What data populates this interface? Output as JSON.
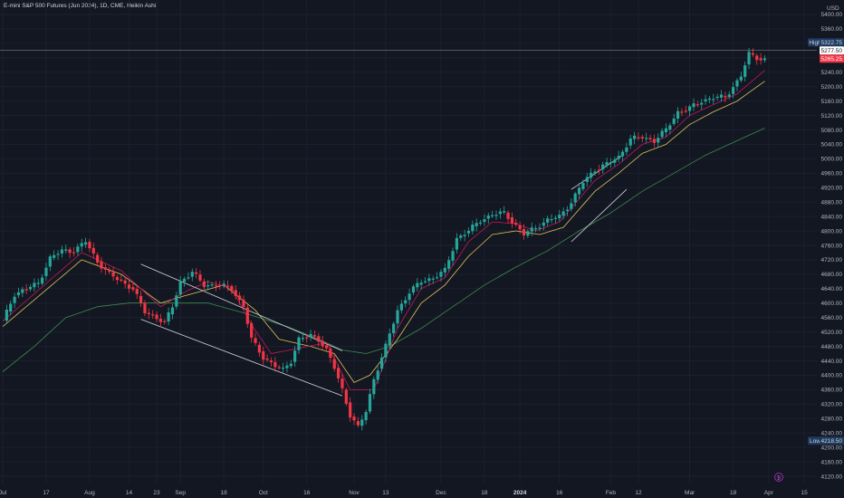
{
  "header": {
    "title": "E-mini S&P 500 Futures (Jun 2024), 1D, CME, Heikin Ashi",
    "currency": "USD"
  },
  "colors": {
    "up": "#26a69a",
    "down": "#f23645",
    "grid": "#1c2030",
    "ema_fast": "#c2185b",
    "ema_mid": "#e0c35a",
    "ema_slow": "#3b8a4f",
    "trendline": "#d1d4dc",
    "accent": "#2962ff"
  },
  "chart_data": {
    "type": "candlestick",
    "style": "heikin-ashi",
    "ylim": [
      4100,
      5440
    ],
    "y_ticks": [
      5400,
      5360,
      5320,
      5280,
      5240,
      5200,
      5160,
      5120,
      5080,
      5040,
      5000,
      4960,
      4920,
      4880,
      4840,
      4800,
      4760,
      4720,
      4680,
      4640,
      4600,
      4560,
      4520,
      4480,
      4440,
      4400,
      4360,
      4320,
      4280,
      4240,
      4200,
      4160,
      4120
    ],
    "y_tick_labels": [
      "5400.00",
      "5360.00",
      "5320.00",
      "5280.00",
      "5240.00",
      "5200.00",
      "5160.00",
      "5120.00",
      "5080.00",
      "5040.00",
      "5000.00",
      "4960.00",
      "4920.00",
      "4880.00",
      "4840.00",
      "4800.00",
      "4760.00",
      "4720.00",
      "4680.00",
      "4640.00",
      "4600.00",
      "4560.00",
      "4520.00",
      "4480.00",
      "4440.00",
      "4400.00",
      "4360.00",
      "4320.00",
      "4280.00",
      "4240.00",
      "4200.00",
      "4160.00",
      "4120.00"
    ],
    "x_labels": [
      {
        "text": "Jul",
        "index": 0,
        "bold": false
      },
      {
        "text": "17",
        "index": 11,
        "bold": false
      },
      {
        "text": "Aug",
        "index": 22,
        "bold": false
      },
      {
        "text": "14",
        "index": 32,
        "bold": false
      },
      {
        "text": "23",
        "index": 39,
        "bold": false
      },
      {
        "text": "Sep",
        "index": 45,
        "bold": false
      },
      {
        "text": "18",
        "index": 56,
        "bold": false
      },
      {
        "text": "Oct",
        "index": 66,
        "bold": false
      },
      {
        "text": "16",
        "index": 77,
        "bold": false
      },
      {
        "text": "Nov",
        "index": 89,
        "bold": false
      },
      {
        "text": "13",
        "index": 97,
        "bold": false
      },
      {
        "text": "Dec",
        "index": 111,
        "bold": false
      },
      {
        "text": "18",
        "index": 122,
        "bold": false
      },
      {
        "text": "2024",
        "index": 131,
        "bold": true
      },
      {
        "text": "16",
        "index": 141,
        "bold": false
      },
      {
        "text": "Feb",
        "index": 154,
        "bold": false
      },
      {
        "text": "12",
        "index": 161,
        "bold": false
      },
      {
        "text": "Mar",
        "index": 174,
        "bold": false
      },
      {
        "text": "18",
        "index": 185,
        "bold": false
      },
      {
        "text": "Apr",
        "index": 194,
        "bold": false
      },
      {
        "text": "15",
        "index": 203,
        "bold": false
      }
    ],
    "price_levels": {
      "high": {
        "label": "High",
        "value": 5322.75,
        "text": "5322.75"
      },
      "low": {
        "label": "Low",
        "value": 4218.5,
        "text": "4218.50"
      },
      "last": {
        "value": 5277.5,
        "text": "5277.50"
      },
      "prev": {
        "value": 5265.25,
        "text": "5265.25"
      }
    },
    "anchors": [
      [
        0,
        4550
      ],
      [
        3,
        4625
      ],
      [
        6,
        4640
      ],
      [
        9,
        4655
      ],
      [
        12,
        4725
      ],
      [
        15,
        4745
      ],
      [
        18,
        4745
      ],
      [
        21,
        4770
      ],
      [
        24,
        4715
      ],
      [
        27,
        4680
      ],
      [
        30,
        4660
      ],
      [
        33,
        4640
      ],
      [
        36,
        4575
      ],
      [
        39,
        4560
      ],
      [
        41,
        4545
      ],
      [
        43,
        4590
      ],
      [
        45,
        4660
      ],
      [
        48,
        4685
      ],
      [
        51,
        4650
      ],
      [
        55,
        4650
      ],
      [
        58,
        4640
      ],
      [
        61,
        4590
      ],
      [
        63,
        4500
      ],
      [
        66,
        4450
      ],
      [
        69,
        4425
      ],
      [
        71,
        4415
      ],
      [
        73,
        4440
      ],
      [
        75,
        4500
      ],
      [
        78,
        4510
      ],
      [
        80,
        4500
      ],
      [
        82,
        4470
      ],
      [
        84,
        4420
      ],
      [
        86,
        4360
      ],
      [
        88,
        4290
      ],
      [
        90,
        4255
      ],
      [
        92,
        4300
      ],
      [
        94,
        4390
      ],
      [
        97,
        4480
      ],
      [
        100,
        4580
      ],
      [
        103,
        4630
      ],
      [
        106,
        4660
      ],
      [
        109,
        4670
      ],
      [
        112,
        4690
      ],
      [
        115,
        4780
      ],
      [
        118,
        4800
      ],
      [
        121,
        4830
      ],
      [
        124,
        4845
      ],
      [
        127,
        4850
      ],
      [
        130,
        4815
      ],
      [
        132,
        4790
      ],
      [
        135,
        4810
      ],
      [
        138,
        4830
      ],
      [
        141,
        4840
      ],
      [
        144,
        4880
      ],
      [
        147,
        4935
      ],
      [
        150,
        4970
      ],
      [
        153,
        4985
      ],
      [
        156,
        5005
      ],
      [
        159,
        5055
      ],
      [
        162,
        5060
      ],
      [
        165,
        5050
      ],
      [
        168,
        5080
      ],
      [
        171,
        5130
      ],
      [
        174,
        5140
      ],
      [
        177,
        5160
      ],
      [
        180,
        5170
      ],
      [
        183,
        5170
      ],
      [
        185,
        5200
      ],
      [
        187,
        5230
      ],
      [
        189,
        5290
      ],
      [
        191,
        5280
      ],
      [
        193,
        5275
      ]
    ],
    "ema_fast": [
      [
        0,
        4550
      ],
      [
        20,
        4740
      ],
      [
        30,
        4690
      ],
      [
        40,
        4590
      ],
      [
        46,
        4630
      ],
      [
        52,
        4660
      ],
      [
        58,
        4640
      ],
      [
        63,
        4540
      ],
      [
        68,
        4460
      ],
      [
        75,
        4475
      ],
      [
        82,
        4490
      ],
      [
        88,
        4360
      ],
      [
        94,
        4360
      ],
      [
        100,
        4530
      ],
      [
        106,
        4640
      ],
      [
        112,
        4670
      ],
      [
        118,
        4770
      ],
      [
        124,
        4825
      ],
      [
        130,
        4820
      ],
      [
        135,
        4800
      ],
      [
        141,
        4825
      ],
      [
        150,
        4940
      ],
      [
        156,
        4985
      ],
      [
        162,
        5040
      ],
      [
        168,
        5060
      ],
      [
        174,
        5120
      ],
      [
        180,
        5150
      ],
      [
        186,
        5180
      ],
      [
        193,
        5245
      ]
    ],
    "ema_mid": [
      [
        0,
        4535
      ],
      [
        20,
        4720
      ],
      [
        30,
        4680
      ],
      [
        40,
        4600
      ],
      [
        46,
        4620
      ],
      [
        56,
        4650
      ],
      [
        64,
        4580
      ],
      [
        70,
        4500
      ],
      [
        78,
        4480
      ],
      [
        84,
        4460
      ],
      [
        89,
        4380
      ],
      [
        93,
        4400
      ],
      [
        100,
        4500
      ],
      [
        106,
        4600
      ],
      [
        112,
        4650
      ],
      [
        118,
        4730
      ],
      [
        124,
        4790
      ],
      [
        130,
        4800
      ],
      [
        136,
        4790
      ],
      [
        142,
        4810
      ],
      [
        150,
        4910
      ],
      [
        156,
        4960
      ],
      [
        162,
        5015
      ],
      [
        168,
        5040
      ],
      [
        174,
        5095
      ],
      [
        180,
        5130
      ],
      [
        186,
        5160
      ],
      [
        193,
        5215
      ]
    ],
    "ema_slow": [
      [
        0,
        4410
      ],
      [
        8,
        4480
      ],
      [
        16,
        4560
      ],
      [
        24,
        4590
      ],
      [
        32,
        4600
      ],
      [
        42,
        4600
      ],
      [
        52,
        4600
      ],
      [
        62,
        4570
      ],
      [
        72,
        4535
      ],
      [
        80,
        4500
      ],
      [
        86,
        4470
      ],
      [
        92,
        4460
      ],
      [
        98,
        4480
      ],
      [
        106,
        4530
      ],
      [
        114,
        4590
      ],
      [
        122,
        4650
      ],
      [
        130,
        4700
      ],
      [
        138,
        4745
      ],
      [
        146,
        4800
      ],
      [
        154,
        4850
      ],
      [
        162,
        4910
      ],
      [
        170,
        4960
      ],
      [
        178,
        5010
      ],
      [
        186,
        5050
      ],
      [
        193,
        5085
      ]
    ],
    "trendlines": [
      {
        "from": [
          35,
          4708
        ],
        "to": [
          86,
          4468
        ]
      },
      {
        "from": [
          35,
          4555
        ],
        "to": [
          86,
          4343
        ]
      },
      {
        "from": [
          144,
          4915
        ],
        "to": [
          157,
          5010
        ]
      },
      {
        "from": [
          144,
          4770
        ],
        "to": [
          158,
          4915
        ]
      }
    ]
  }
}
